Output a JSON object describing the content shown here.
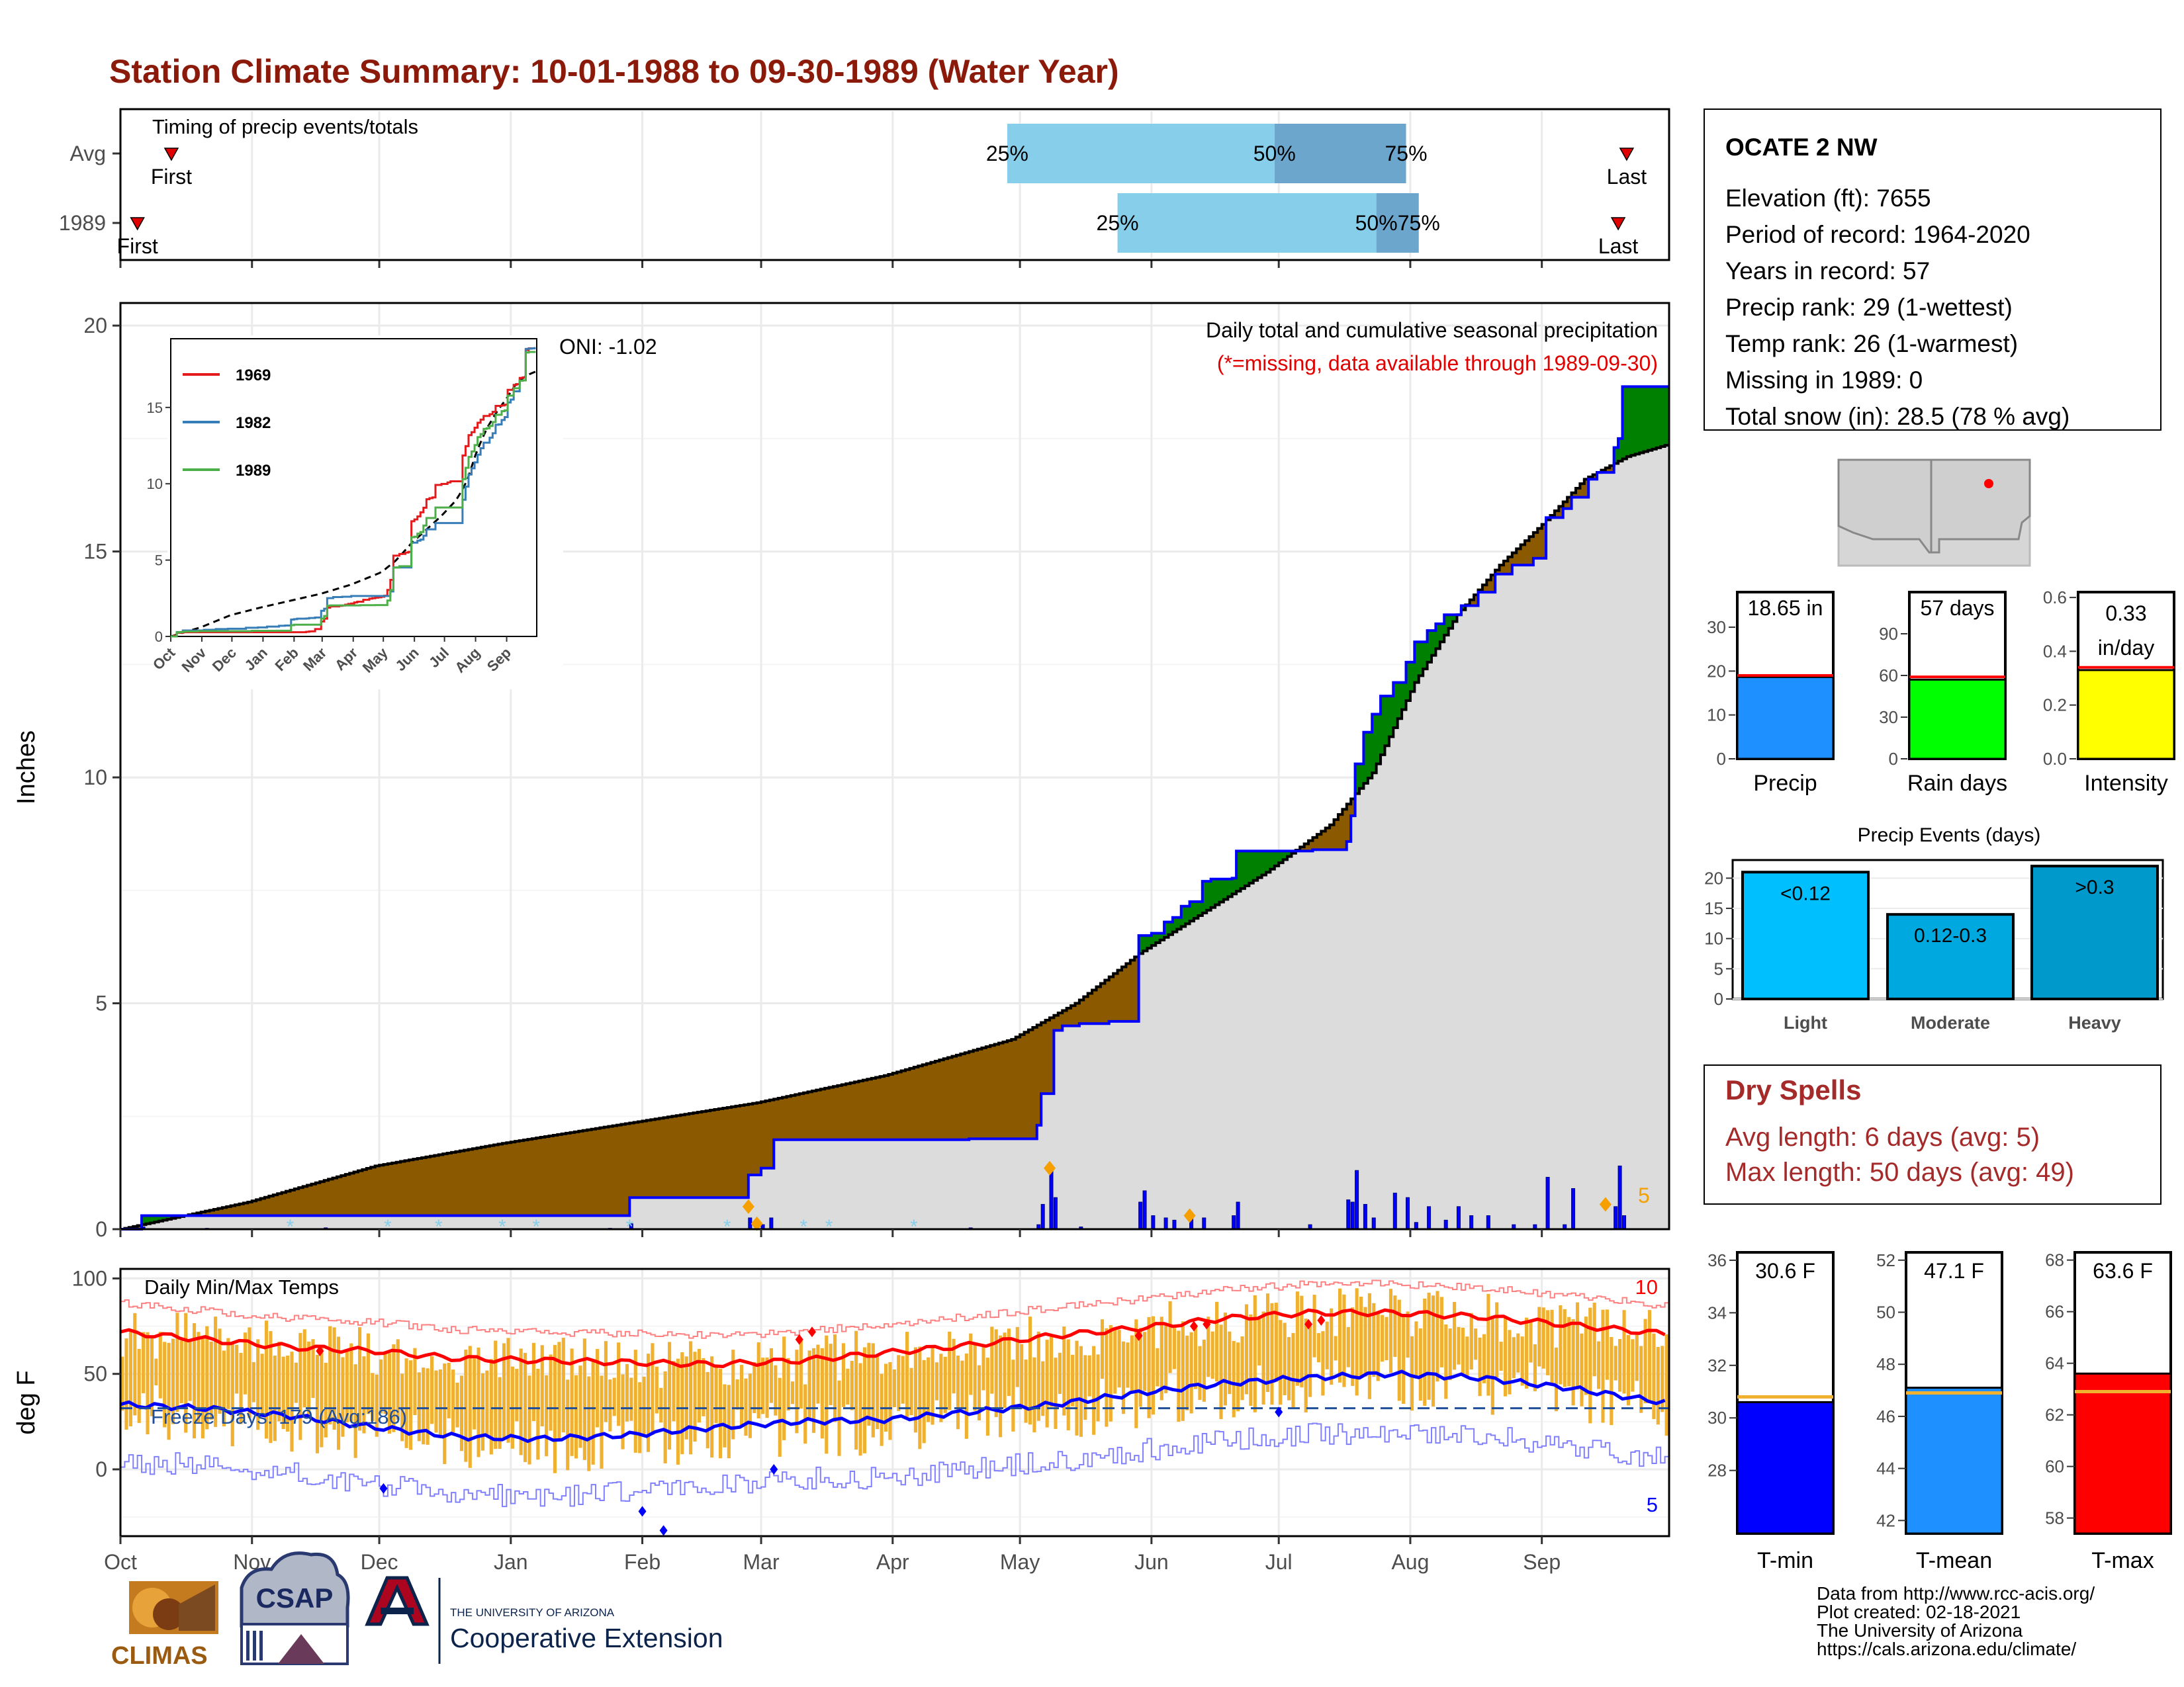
{
  "title": "Station Climate Summary: 10-01-1988 to 09-30-1989 (Water Year)",
  "colors": {
    "title": "#8b1a0a",
    "dry_title": "#a52a2a",
    "precip_fill": "#dcdcdc",
    "deficit": "#8b5a00",
    "surplus": "#008000",
    "cum_line": "#0000ff",
    "avg_line": "#000000",
    "tmax_bar": "#f0b030",
    "tmax_line": "#ff0000",
    "tmin_line": "#0000ff"
  },
  "month_labels": [
    "Oct",
    "Nov",
    "Dec",
    "Jan",
    "Feb",
    "Mar",
    "Apr",
    "May",
    "Jun",
    "Jul",
    "Aug",
    "Sep"
  ],
  "timing": {
    "title": "Timing of precip events/totals",
    "rows": [
      {
        "label": "Avg",
        "first_doy": 12,
        "p25_doy": 209,
        "p50_doy": 272,
        "p75_doy": 303,
        "last_doy": 355,
        "first": "First",
        "last": "Last",
        "p25": "25%",
        "p50": "50%",
        "p75": "75%"
      },
      {
        "label": "1989",
        "first_doy": 4,
        "p25_doy": 235,
        "p50_doy": 296,
        "p75_doy": 306,
        "last_doy": 353,
        "first": "First",
        "last": "Last",
        "p25": "25%",
        "p50": "50%",
        "p75": "75%"
      }
    ]
  },
  "precip_panel": {
    "ylabel": "Inches",
    "yticks": [
      "0",
      "5",
      "10",
      "15",
      "20"
    ],
    "ylim": [
      0,
      20.5
    ],
    "oni": "ONI: -1.02",
    "caption1": "Daily total and cumulative seasonal precipitation",
    "caption2": "(*=missing, data available through 1989-09-30)",
    "extreme_count": "5"
  },
  "chart_data": {
    "type": "line",
    "x_unit": "day of water year (0 = Oct 1 1988)",
    "cumulative_1989": [
      [
        0,
        0
      ],
      [
        5,
        0.3
      ],
      [
        120,
        0.7
      ],
      [
        140,
        0.7
      ],
      [
        148,
        1.2
      ],
      [
        150,
        1.2
      ],
      [
        151,
        1.35
      ],
      [
        154,
        1.98
      ],
      [
        178,
        1.98
      ],
      [
        200,
        2.0
      ],
      [
        216,
        2.3
      ],
      [
        217,
        3.0
      ],
      [
        220,
        4.4
      ],
      [
        222,
        4.5
      ],
      [
        226,
        4.55
      ],
      [
        233,
        4.6
      ],
      [
        240,
        6.5
      ],
      [
        243,
        6.55
      ],
      [
        246,
        6.8
      ],
      [
        248,
        6.9
      ],
      [
        250,
        7.15
      ],
      [
        252,
        7.25
      ],
      [
        255,
        7.7
      ],
      [
        257,
        7.75
      ],
      [
        262,
        7.77
      ],
      [
        263,
        8.37
      ],
      [
        280,
        8.37
      ],
      [
        281,
        8.4
      ],
      [
        289,
        8.58
      ],
      [
        290,
        9.15
      ],
      [
        291,
        10.3
      ],
      [
        293,
        11.0
      ],
      [
        295,
        11.4
      ],
      [
        297,
        11.8
      ],
      [
        300,
        12.1
      ],
      [
        303,
        12.55
      ],
      [
        305,
        13.0
      ],
      [
        308,
        13.25
      ],
      [
        310,
        13.4
      ],
      [
        312,
        13.6
      ],
      [
        316,
        13.8
      ],
      [
        320,
        14.1
      ],
      [
        324,
        14.5
      ],
      [
        328,
        14.7
      ],
      [
        333,
        14.85
      ],
      [
        336,
        15.75
      ],
      [
        340,
        15.95
      ],
      [
        342,
        16.2
      ],
      [
        346,
        16.6
      ],
      [
        348,
        16.75
      ],
      [
        352,
        17.3
      ],
      [
        353,
        17.5
      ],
      [
        354,
        18.65
      ],
      [
        364,
        18.65
      ]
    ],
    "avg_cumulative": [
      [
        0,
        0
      ],
      [
        30,
        0.6
      ],
      [
        60,
        1.4
      ],
      [
        90,
        1.9
      ],
      [
        120,
        2.35
      ],
      [
        150,
        2.8
      ],
      [
        180,
        3.4
      ],
      [
        210,
        4.2
      ],
      [
        225,
        5.0
      ],
      [
        240,
        6.1
      ],
      [
        255,
        7.0
      ],
      [
        270,
        7.9
      ],
      [
        285,
        8.95
      ],
      [
        295,
        10.1
      ],
      [
        305,
        12.1
      ],
      [
        315,
        13.6
      ],
      [
        325,
        14.7
      ],
      [
        335,
        15.6
      ],
      [
        345,
        16.6
      ],
      [
        355,
        17.1
      ],
      [
        364,
        17.35
      ]
    ],
    "daily_precip": [
      [
        5,
        0.05
      ],
      [
        20,
        0.02
      ],
      [
        48,
        0.03
      ],
      [
        115,
        0.02
      ],
      [
        120,
        0.12
      ],
      [
        148,
        0.25
      ],
      [
        151,
        0.1
      ],
      [
        153,
        0.25
      ],
      [
        200,
        0.03
      ],
      [
        216,
        0.1
      ],
      [
        217,
        0.55
      ],
      [
        219,
        1.35
      ],
      [
        220,
        0.7
      ],
      [
        226,
        0.05
      ],
      [
        240,
        0.6
      ],
      [
        241,
        0.85
      ],
      [
        243,
        0.3
      ],
      [
        246,
        0.25
      ],
      [
        248,
        0.2
      ],
      [
        252,
        0.3
      ],
      [
        255,
        0.25
      ],
      [
        262,
        0.3
      ],
      [
        263,
        0.6
      ],
      [
        280,
        0.1
      ],
      [
        289,
        0.65
      ],
      [
        290,
        0.6
      ],
      [
        291,
        1.3
      ],
      [
        293,
        0.55
      ],
      [
        295,
        0.25
      ],
      [
        300,
        0.8
      ],
      [
        303,
        0.7
      ],
      [
        305,
        0.15
      ],
      [
        308,
        0.5
      ],
      [
        312,
        0.2
      ],
      [
        315,
        0.5
      ],
      [
        318,
        0.3
      ],
      [
        322,
        0.3
      ],
      [
        328,
        0.1
      ],
      [
        333,
        0.1
      ],
      [
        336,
        1.15
      ],
      [
        340,
        0.1
      ],
      [
        342,
        0.9
      ],
      [
        352,
        0.5
      ],
      [
        353,
        1.4
      ],
      [
        354,
        0.3
      ]
    ],
    "extreme_precip": [
      [
        148,
        0.5
      ],
      [
        150,
        0.12
      ],
      [
        219,
        1.35
      ],
      [
        252,
        0.3
      ],
      [
        350,
        0.55
      ]
    ],
    "snow_days": [
      40,
      63,
      75,
      90,
      98,
      120,
      143,
      161,
      167,
      187
    ],
    "ylim": [
      0,
      20.5
    ],
    "inset": {
      "series": [
        {
          "name": "1969"
        },
        {
          "name": "1982"
        },
        {
          "name": "1989"
        }
      ],
      "yticks": [
        "0",
        "5",
        "10",
        "15"
      ],
      "xticks": [
        "Oct",
        "Nov",
        "Dec",
        "Jan",
        "Feb",
        "Mar",
        "Apr",
        "May",
        "Jun",
        "Jul",
        "Aug",
        "Sep"
      ]
    },
    "temp": {
      "tmax_smooth": [
        [
          0,
          72
        ],
        [
          20,
          68
        ],
        [
          40,
          64
        ],
        [
          60,
          62
        ],
        [
          80,
          58
        ],
        [
          100,
          57
        ],
        [
          120,
          56
        ],
        [
          140,
          55
        ],
        [
          160,
          57
        ],
        [
          180,
          61
        ],
        [
          200,
          65
        ],
        [
          220,
          70
        ],
        [
          240,
          74
        ],
        [
          260,
          79
        ],
        [
          280,
          82
        ],
        [
          300,
          82
        ],
        [
          320,
          80
        ],
        [
          340,
          76
        ],
        [
          364,
          71
        ]
      ],
      "tmin_smooth": [
        [
          0,
          34
        ],
        [
          20,
          32
        ],
        [
          40,
          28
        ],
        [
          60,
          22
        ],
        [
          80,
          17
        ],
        [
          100,
          16
        ],
        [
          120,
          18
        ],
        [
          140,
          22
        ],
        [
          160,
          25
        ],
        [
          180,
          26
        ],
        [
          200,
          30
        ],
        [
          220,
          34
        ],
        [
          240,
          40
        ],
        [
          260,
          45
        ],
        [
          280,
          48
        ],
        [
          300,
          50
        ],
        [
          320,
          48
        ],
        [
          340,
          43
        ],
        [
          364,
          35
        ]
      ],
      "ylim": [
        -35,
        105
      ],
      "freeze_line": 32,
      "yticks": [
        "0",
        "50",
        "100"
      ]
    }
  },
  "temp_panel": {
    "ylabel": "deg F",
    "title": "Daily Min/Max Temps",
    "freeze": "Freeze Days: 179 (Avg:186)",
    "max_count": "10",
    "min_count": "5"
  },
  "station": {
    "name": "OCATE 2 NW",
    "lines": [
      "Elevation (ft): 7655",
      "Period of record: 1964-2020",
      "Years in record: 57",
      "Precip rank: 29 (1-wettest)",
      "Temp rank: 26 (1-warmest)",
      "Missing in 1989: 0",
      "Total snow (in): 28.5 (78 % avg)"
    ]
  },
  "bars_top": [
    {
      "label": "Precip",
      "value_text": "18.65 in",
      "value": 18.65,
      "avg": 19,
      "ylim": [
        0,
        38
      ],
      "yticks": [
        "0",
        "10",
        "20",
        "30"
      ],
      "color": "#1e90ff"
    },
    {
      "label": "Rain days",
      "value_text": "57 days",
      "value": 57,
      "avg": 59,
      "ylim": [
        0,
        120
      ],
      "yticks": [
        "0",
        "30",
        "60",
        "90"
      ],
      "color": "#00ff00"
    },
    {
      "label": "Intensity",
      "value_text1": "0.33",
      "value_text2": "in/day",
      "value": 0.33,
      "avg": 0.34,
      "ylim": [
        0,
        0.62
      ],
      "yticks": [
        "0.0",
        "0.2",
        "0.4",
        "0.6"
      ],
      "color": "#ffff00"
    }
  ],
  "events": {
    "title": "Precip Events (days)",
    "yticks": [
      "0",
      "5",
      "10",
      "15",
      "20"
    ],
    "bars": [
      {
        "label": "Light",
        "value": 21,
        "text": "<0.12",
        "color": "#00bfff"
      },
      {
        "label": "Moderate",
        "value": 14,
        "text": "0.12-0.3",
        "color": "#00a8e0"
      },
      {
        "label": "Heavy",
        "value": 22,
        "text": ">0.3",
        "color": "#0099cc"
      }
    ]
  },
  "dry": {
    "title": "Dry Spells",
    "line1": "Avg length: 6 days (avg: 5)",
    "line2": "Max length: 50 days (avg: 49)"
  },
  "temp_bars": [
    {
      "label": "T-min",
      "value_text": "30.6 F",
      "value": 30.6,
      "avg": 30.8,
      "ymin": 25.6,
      "ymax": 36.3,
      "yticks": [
        28,
        30,
        32,
        34,
        36
      ],
      "color": "#0000ff"
    },
    {
      "label": "T-mean",
      "value_text": "47.1 F",
      "value": 47.1,
      "avg": 46.9,
      "ymin": 41.5,
      "ymax": 52.3,
      "yticks": [
        42,
        44,
        46,
        48,
        50,
        52
      ],
      "color": "#1e90ff"
    },
    {
      "label": "T-max",
      "value_text": "63.6 F",
      "value": 63.6,
      "avg": 62.9,
      "ymin": 57.4,
      "ymax": 68.3,
      "yticks": [
        58,
        60,
        62,
        64,
        66,
        68
      ],
      "color": "#ff0000"
    }
  ],
  "footer": {
    "lines": [
      "Data from http://www.rcc-acis.org/",
      "Plot created: 02-18-2021",
      "The University of Arizona",
      "https://cals.arizona.edu/climate/"
    ],
    "climas": "CLIMAS",
    "csap": "CSAP",
    "ua_line1": "THE UNIVERSITY OF ARIZONA",
    "ua_line2": "Cooperative Extension"
  }
}
